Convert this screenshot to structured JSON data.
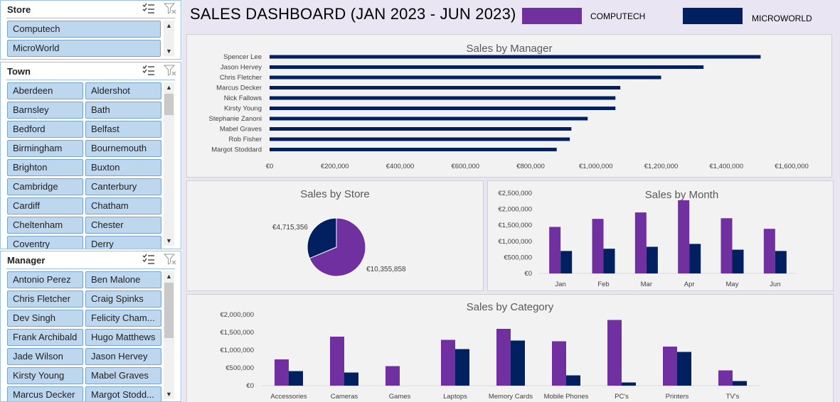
{
  "colors": {
    "computech": "#7030a0",
    "microworld": "#002060"
  },
  "slicers": {
    "store": {
      "title": "Store",
      "items": [
        "Computech",
        "MicroWorld"
      ]
    },
    "town": {
      "title": "Town",
      "items": [
        "Aberdeen",
        "Aldershot",
        "Barnsley",
        "Bath",
        "Bedford",
        "Belfast",
        "Birmingham",
        "Bournemouth",
        "Brighton",
        "Buxton",
        "Cambridge",
        "Canterbury",
        "Cardiff",
        "Chatham",
        "Cheltenham",
        "Chester",
        "Coventry",
        "Derry"
      ]
    },
    "manager": {
      "title": "Manager",
      "items": [
        "Antonio Perez",
        "Ben Malone",
        "Chris Fletcher",
        "Craig Spinks",
        "Dev Singh",
        "Felicity Cham...",
        "Frank Archibald",
        "Hugo Matthews",
        "Jade Wilson",
        "Jason Hervey",
        "Kirsty Young",
        "Mabel Graves",
        "Marcus Decker",
        "Margot Stodd..."
      ]
    }
  },
  "dashboard": {
    "title": "SALES DASHBOARD (JAN 2023 - JUN 2023)",
    "legend": {
      "computech": "COMPUTECH",
      "microworld": "MICROWORLD"
    }
  },
  "chart_data": [
    {
      "type": "bar",
      "orientation": "horizontal",
      "title": "Sales by Manager",
      "categories": [
        "Spencer Lee",
        "Jason Hervey",
        "Chris Fletcher",
        "Marcus Decker",
        "Nick Fallows",
        "Kirsty Young",
        "Stephanie Zanoni",
        "Mabel Graves",
        "Rob Fisher",
        "Margot Stoddard"
      ],
      "values": [
        1505000,
        1330000,
        1200000,
        1075000,
        1060000,
        1060000,
        975000,
        925000,
        920000,
        880000
      ],
      "ticks": [
        "€0",
        "€200,000",
        "€400,000",
        "€600,000",
        "€800,000",
        "€1,000,000",
        "€1,200,000",
        "€1,400,000",
        "€1,600,000"
      ],
      "xlim": [
        0,
        1600000
      ]
    },
    {
      "type": "pie",
      "title": "Sales by Store",
      "slices": [
        {
          "series": "computech",
          "value": 10355858,
          "label": "€10,355,858"
        },
        {
          "series": "microworld",
          "value": 4715356,
          "label": "€4,715,356"
        }
      ]
    },
    {
      "type": "bar",
      "title": "Sales by Month",
      "categories": [
        "Jan",
        "Feb",
        "Mar",
        "Apr",
        "May",
        "Jun"
      ],
      "series": [
        {
          "key": "computech",
          "values": [
            1450000,
            1700000,
            1900000,
            2280000,
            1720000,
            1390000
          ]
        },
        {
          "key": "microworld",
          "values": [
            700000,
            770000,
            830000,
            920000,
            740000,
            700000
          ]
        }
      ],
      "ticks": [
        "€0",
        "€500,000",
        "€1,000,000",
        "€1,500,000",
        "€2,000,000",
        "€2,500,000"
      ],
      "ylim": [
        0,
        2500000
      ]
    },
    {
      "type": "bar",
      "title": "Sales by Category",
      "categories": [
        "Accessories",
        "Cameras",
        "Games",
        "Laptops",
        "Memory Cards",
        "Mobile Phones",
        "PC's",
        "Printers",
        "TV's"
      ],
      "series": [
        {
          "key": "computech",
          "values": [
            740000,
            1380000,
            550000,
            1290000,
            1600000,
            1250000,
            1850000,
            1100000,
            430000
          ]
        },
        {
          "key": "microworld",
          "values": [
            410000,
            370000,
            0,
            1030000,
            1270000,
            290000,
            90000,
            950000,
            130000
          ]
        }
      ],
      "ticks": [
        "€0",
        "€500,000",
        "€1,000,000",
        "€1,500,000",
        "€2,000,000"
      ],
      "ylim": [
        0,
        2000000
      ]
    }
  ]
}
